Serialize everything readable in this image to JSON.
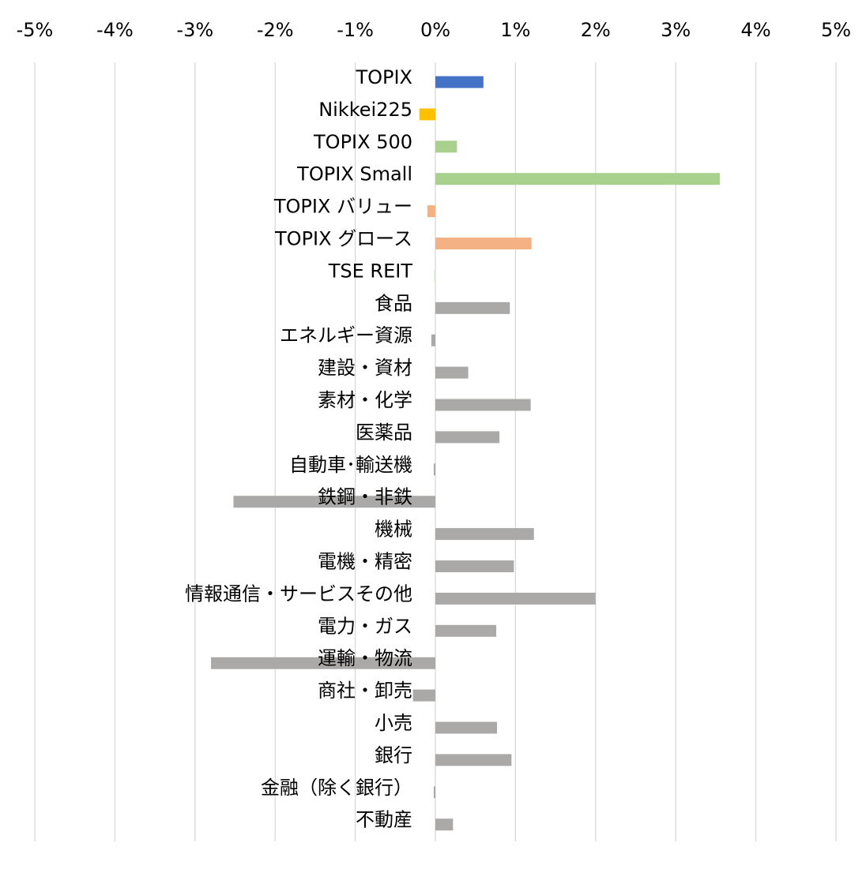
{
  "chart_data": {
    "type": "bar",
    "orientation": "horizontal",
    "title": "",
    "xlabel": "",
    "ylabel": "",
    "xlim": [
      -5,
      5
    ],
    "x_ticks": [
      -5,
      -4,
      -3,
      -2,
      -1,
      0,
      1,
      2,
      3,
      4,
      5
    ],
    "x_tick_labels": [
      "-5%",
      "-4%",
      "-3%",
      "-2%",
      "-1%",
      "0%",
      "1%",
      "2%",
      "3%",
      "4%",
      "5%"
    ],
    "x_axis_position": "top",
    "grid": "vertical",
    "legend": "none",
    "categories": [
      "TOPIX",
      "Nikkei225",
      "TOPIX 500",
      "TOPIX Small",
      "TOPIX バリュー",
      "TOPIX グロース",
      "TSE REIT",
      "食品",
      "エネルギー資源",
      "建設・資材",
      "素材・化学",
      "医薬品",
      "自動車･輸送機",
      "鉄鋼・非鉄",
      "機械",
      "電機・精密",
      "情報通信・サービスその他",
      "電力・ガス",
      "運輸・物流",
      "商社・卸売",
      "小売",
      "銀行",
      "金融（除く銀行）",
      "不動産"
    ],
    "values": [
      0.6,
      -0.2,
      0.27,
      3.55,
      -0.1,
      1.2,
      -0.02,
      0.93,
      -0.05,
      0.41,
      1.19,
      0.8,
      -0.02,
      -2.52,
      1.23,
      0.98,
      2.0,
      0.76,
      -2.8,
      -0.28,
      0.77,
      0.95,
      -0.02,
      0.22
    ],
    "colors": [
      "#4472C4",
      "#FFC000",
      "#A9D18E",
      "#A9D18E",
      "#F4B183",
      "#F4B183",
      "#E2EFDA",
      "#ABA8A8",
      "#ABA8A8",
      "#ABA8A8",
      "#ABA8A8",
      "#ABA8A8",
      "#ABA8A8",
      "#ABA8A8",
      "#ABA8A8",
      "#ABA8A8",
      "#ABA8A8",
      "#ABA8A8",
      "#ABA8A8",
      "#ABA8A8",
      "#ABA8A8",
      "#ABA8A8",
      "#ABA8A8",
      "#ABA8A8"
    ]
  }
}
